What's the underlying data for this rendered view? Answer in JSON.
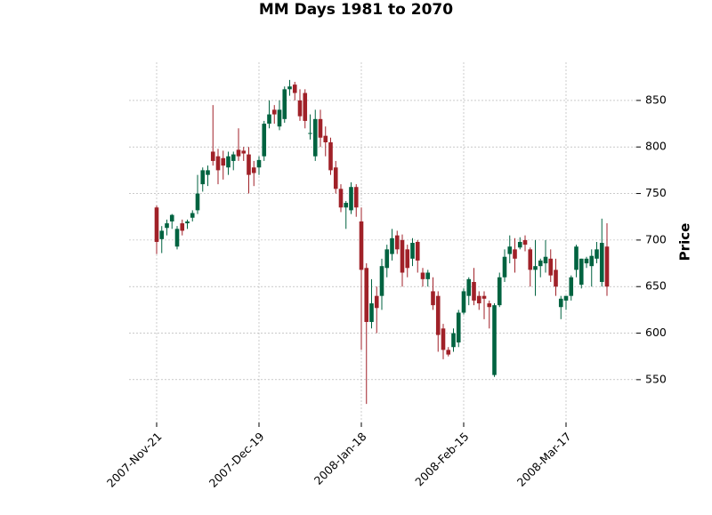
{
  "chart_data": {
    "type": "candlestick",
    "title": "MM Days 1981 to 2070",
    "y_label": "Price",
    "categories": [
      "2007-Nov-21",
      null,
      null,
      null,
      null,
      null,
      null,
      null,
      null,
      null,
      null,
      null,
      null,
      null,
      null,
      null,
      null,
      null,
      null,
      null,
      "2007-Dec-19",
      null,
      null,
      null,
      null,
      null,
      null,
      null,
      null,
      null,
      null,
      null,
      null,
      null,
      null,
      null,
      null,
      null,
      null,
      null,
      "2008-Jan-18",
      null,
      null,
      null,
      null,
      null,
      null,
      null,
      null,
      null,
      null,
      null,
      null,
      null,
      null,
      null,
      null,
      null,
      null,
      null,
      "2008-Feb-15",
      null,
      null,
      null,
      null,
      null,
      null,
      null,
      null,
      null,
      null,
      null,
      null,
      null,
      null,
      null,
      null,
      null,
      null,
      null,
      "2008-Mar-17",
      null,
      null,
      null,
      null,
      null,
      null,
      null,
      null
    ],
    "open": [
      735,
      701,
      713,
      720,
      693,
      718,
      718,
      724,
      732,
      760,
      770,
      795,
      790,
      788,
      778,
      785,
      797,
      796,
      792,
      778,
      778,
      790,
      825,
      840,
      822,
      830,
      862,
      867,
      850,
      858,
      815,
      790,
      830,
      812,
      805,
      778,
      755,
      735,
      732,
      757,
      720,
      670,
      612,
      640,
      640,
      670,
      685,
      705,
      700,
      690,
      680,
      698,
      665,
      658,
      645,
      640,
      605,
      582,
      585,
      590,
      622,
      640,
      655,
      640,
      640,
      632,
      555,
      630,
      660,
      685,
      690,
      692,
      700,
      690,
      668,
      672,
      675,
      680,
      668,
      628,
      635,
      640,
      668,
      652,
      675,
      672,
      680,
      655,
      693
    ],
    "high": [
      737,
      715,
      722,
      728,
      715,
      722,
      722,
      732,
      770,
      778,
      780,
      845,
      798,
      796,
      795,
      795,
      820,
      800,
      800,
      785,
      790,
      828,
      850,
      845,
      850,
      865,
      872,
      870,
      862,
      862,
      835,
      840,
      840,
      822,
      810,
      785,
      760,
      742,
      762,
      760,
      735,
      675,
      658,
      650,
      680,
      695,
      712,
      710,
      706,
      695,
      702,
      700,
      670,
      668,
      660,
      645,
      610,
      585,
      605,
      625,
      648,
      660,
      670,
      645,
      645,
      635,
      632,
      665,
      690,
      705,
      702,
      703,
      705,
      692,
      700,
      680,
      700,
      690,
      680,
      640,
      640,
      662,
      695,
      680,
      682,
      690,
      698,
      723,
      718
    ],
    "low": [
      685,
      686,
      705,
      712,
      690,
      705,
      712,
      720,
      728,
      752,
      758,
      780,
      760,
      765,
      770,
      775,
      785,
      785,
      750,
      758,
      770,
      785,
      820,
      825,
      818,
      826,
      855,
      850,
      828,
      820,
      808,
      785,
      800,
      790,
      770,
      750,
      730,
      712,
      728,
      725,
      582,
      524,
      605,
      600,
      625,
      660,
      678,
      685,
      650,
      660,
      672,
      665,
      650,
      650,
      625,
      580,
      572,
      575,
      580,
      585,
      620,
      630,
      630,
      625,
      615,
      605,
      553,
      628,
      655,
      675,
      665,
      690,
      688,
      650,
      640,
      660,
      665,
      655,
      640,
      615,
      625,
      635,
      660,
      648,
      670,
      650,
      675,
      650,
      640
    ],
    "close": [
      698,
      710,
      718,
      727,
      712,
      710,
      720,
      729,
      750,
      775,
      775,
      785,
      775,
      780,
      790,
      792,
      790,
      793,
      770,
      772,
      786,
      825,
      835,
      835,
      840,
      862,
      865,
      858,
      833,
      828,
      815,
      830,
      810,
      805,
      775,
      755,
      735,
      740,
      757,
      735,
      668,
      612,
      632,
      627,
      672,
      690,
      702,
      690,
      665,
      670,
      697,
      678,
      658,
      665,
      630,
      598,
      582,
      577,
      600,
      622,
      645,
      658,
      635,
      632,
      637,
      628,
      630,
      660,
      682,
      693,
      680,
      698,
      695,
      668,
      672,
      678,
      682,
      662,
      650,
      637,
      640,
      660,
      693,
      680,
      680,
      683,
      690,
      697,
      650
    ],
    "up_color": "#006340",
    "down_color": "#a02128",
    "ylim": [
      504,
      891
    ],
    "yticks": [
      550,
      600,
      650,
      700,
      750,
      800,
      850
    ],
    "grid": true
  }
}
